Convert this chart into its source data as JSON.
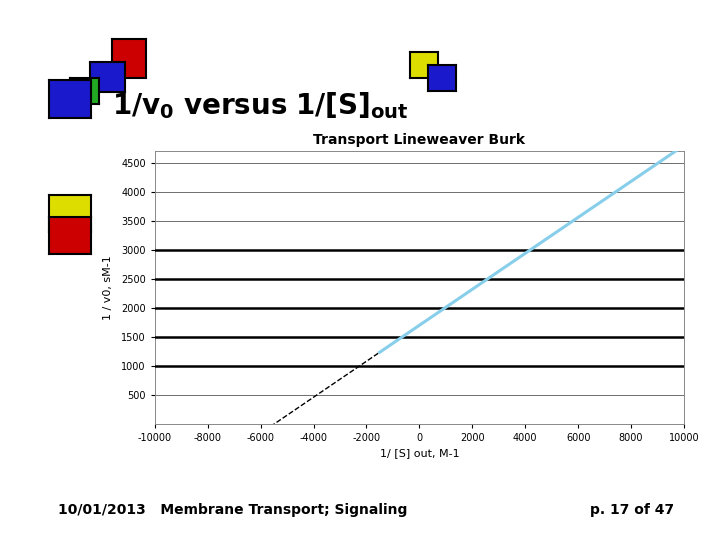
{
  "title": "Transport Lineweaver Burk",
  "xlabel": "1/ [S] out, M-1",
  "ylabel": "1 / v0, sM-1",
  "xlim": [
    -10000,
    10000
  ],
  "ylim": [
    0,
    4700
  ],
  "xticks": [
    -10000,
    -8000,
    -6000,
    -4000,
    -2000,
    0,
    2000,
    4000,
    6000,
    8000,
    10000
  ],
  "yticks": [
    500,
    1000,
    1500,
    2000,
    2500,
    3000,
    3500,
    4000,
    4500
  ],
  "slope": 0.31,
  "intercept": 1700,
  "dashed_x_start": -10000,
  "dashed_x_end": -1500,
  "solid_x_start": -1500,
  "solid_x_end": 10000,
  "line_color_solid": "#87CEEB",
  "line_color_dashed": "#000000",
  "bg_color": "#ffffff",
  "slide_title_part1": "1/v",
  "slide_title_sub": "0",
  "slide_title_part2": " versus 1/[S]",
  "slide_title_sub2": "out",
  "footer_left": "10/01/2013   Membrane Transport; Signaling",
  "footer_right": "p. 17 of 47",
  "heavy_hlines": [
    1000,
    1500,
    2000,
    2500,
    3000
  ],
  "bar_color": "#000000",
  "sq_left": [
    {
      "fx": 0.155,
      "fy": 0.855,
      "fw": 0.048,
      "fh": 0.072,
      "color": "#cc0000"
    },
    {
      "fx": 0.125,
      "fy": 0.83,
      "fw": 0.048,
      "fh": 0.055,
      "color": "#1a1acc"
    },
    {
      "fx": 0.097,
      "fy": 0.808,
      "fw": 0.04,
      "fh": 0.048,
      "color": "#22aa22"
    },
    {
      "fx": 0.068,
      "fy": 0.782,
      "fw": 0.058,
      "fh": 0.07,
      "color": "#1a1acc"
    }
  ],
  "sq_right": [
    {
      "fx": 0.57,
      "fy": 0.855,
      "fw": 0.038,
      "fh": 0.048,
      "color": "#dddd00"
    },
    {
      "fx": 0.595,
      "fy": 0.832,
      "fw": 0.038,
      "fh": 0.048,
      "color": "#1a1acc"
    }
  ],
  "sq_left2": [
    {
      "fx": 0.068,
      "fy": 0.57,
      "fw": 0.058,
      "fh": 0.068,
      "color": "#dddd00"
    },
    {
      "fx": 0.068,
      "fy": 0.53,
      "fw": 0.058,
      "fh": 0.068,
      "color": "#cc0000"
    }
  ]
}
